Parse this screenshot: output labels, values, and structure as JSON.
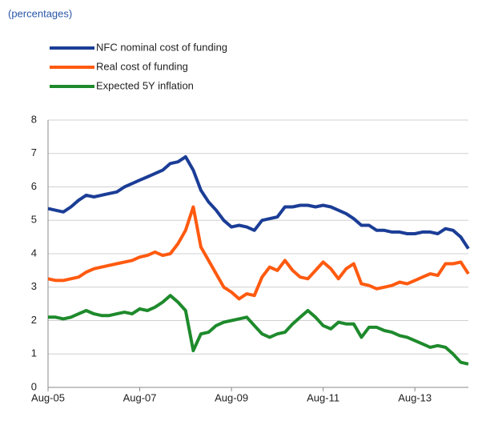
{
  "chart_data": {
    "type": "line",
    "subtitle": "(percentages)",
    "categories": [
      "Aug-05",
      null,
      null,
      null,
      null,
      null,
      null,
      null,
      null,
      null,
      null,
      null,
      "Aug-07",
      null,
      null,
      null,
      null,
      null,
      null,
      null,
      null,
      null,
      null,
      null,
      "Aug-09",
      null,
      null,
      null,
      null,
      null,
      null,
      null,
      null,
      null,
      null,
      null,
      "Aug-11",
      null,
      null,
      null,
      null,
      null,
      null,
      null,
      null,
      null,
      null,
      null,
      "Aug-13",
      null,
      null,
      null,
      null,
      null,
      null,
      null
    ],
    "series": [
      {
        "name": "NFC nominal cost of funding",
        "color": "#1b3d96",
        "values": [
          5.35,
          5.3,
          5.25,
          5.4,
          5.6,
          5.75,
          5.7,
          5.75,
          5.8,
          5.85,
          6.0,
          6.1,
          6.2,
          6.3,
          6.4,
          6.5,
          6.7,
          6.75,
          6.9,
          6.5,
          5.9,
          5.55,
          5.3,
          5.0,
          4.8,
          4.85,
          4.8,
          4.7,
          5.0,
          5.05,
          5.1,
          5.4,
          5.4,
          5.45,
          5.45,
          5.4,
          5.45,
          5.4,
          5.3,
          5.2,
          5.05,
          4.85,
          4.85,
          4.7,
          4.7,
          4.65,
          4.65,
          4.6,
          4.6,
          4.65,
          4.65,
          4.6,
          4.75,
          4.7,
          4.5,
          4.15
        ]
      },
      {
        "name": "Real cost of funding",
        "color": "#ff5a10",
        "values": [
          3.25,
          3.2,
          3.2,
          3.25,
          3.3,
          3.45,
          3.55,
          3.6,
          3.65,
          3.7,
          3.75,
          3.8,
          3.9,
          3.95,
          4.05,
          3.95,
          4.0,
          4.3,
          4.7,
          5.4,
          4.2,
          3.8,
          3.4,
          3.0,
          2.85,
          2.65,
          2.8,
          2.75,
          3.3,
          3.6,
          3.5,
          3.8,
          3.5,
          3.3,
          3.25,
          3.5,
          3.75,
          3.55,
          3.25,
          3.55,
          3.7,
          3.1,
          3.05,
          2.95,
          3.0,
          3.05,
          3.15,
          3.1,
          3.2,
          3.3,
          3.4,
          3.35,
          3.7,
          3.7,
          3.75,
          3.4
        ]
      },
      {
        "name": "Expected 5Y inflation",
        "color": "#1e8a2c",
        "values": [
          2.1,
          2.1,
          2.05,
          2.1,
          2.2,
          2.3,
          2.2,
          2.15,
          2.15,
          2.2,
          2.25,
          2.2,
          2.35,
          2.3,
          2.4,
          2.55,
          2.75,
          2.55,
          2.3,
          1.1,
          1.6,
          1.65,
          1.85,
          1.95,
          2.0,
          2.05,
          2.1,
          1.85,
          1.6,
          1.5,
          1.6,
          1.65,
          1.9,
          2.1,
          2.3,
          2.1,
          1.85,
          1.75,
          1.95,
          1.9,
          1.9,
          1.5,
          1.8,
          1.8,
          1.7,
          1.65,
          1.55,
          1.5,
          1.4,
          1.3,
          1.2,
          1.25,
          1.2,
          1.0,
          0.75,
          0.7
        ]
      }
    ],
    "ylim": [
      0,
      8
    ],
    "yticks": [
      0,
      1,
      2,
      3,
      4,
      5,
      6,
      7,
      8
    ],
    "grid": true,
    "legend": "top-left"
  }
}
